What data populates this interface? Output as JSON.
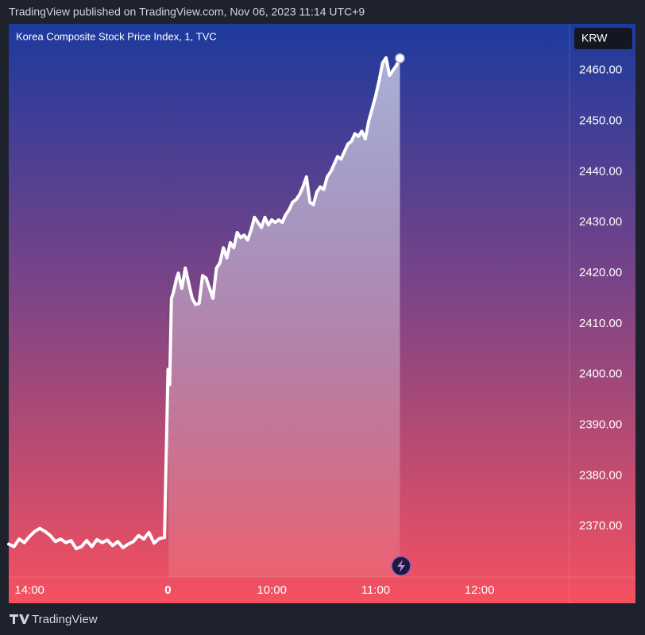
{
  "header": {
    "text": "TradingView published on TradingView.com, Nov 06, 2023 11:14 UTC+9"
  },
  "footer": {
    "brand": "TradingView"
  },
  "chart_data": {
    "type": "line",
    "title": "Korea Composite Stock Price Index, 1, TVC",
    "currency": "KRW",
    "x": [
      -92,
      -89,
      -86,
      -83,
      -80,
      -77,
      -74,
      -71,
      -68,
      -65,
      -62,
      -59,
      -56,
      -53,
      -50,
      -47,
      -44,
      -41,
      -38,
      -35,
      -32,
      -29,
      -26,
      -23,
      -20,
      -17,
      -14,
      -11,
      -8,
      -5,
      -2,
      0,
      1,
      2,
      3,
      5,
      6,
      8,
      10,
      12,
      14,
      16,
      18,
      20,
      22,
      24,
      26,
      28,
      30,
      32,
      34,
      36,
      38,
      40,
      42,
      44,
      46,
      48,
      50,
      52,
      54,
      56,
      58,
      60,
      62,
      64,
      66,
      68,
      70,
      72,
      74,
      76,
      78,
      80,
      82,
      84,
      86,
      88,
      90,
      92,
      94,
      96,
      98,
      100,
      102,
      104,
      106,
      108,
      110,
      112,
      114,
      116,
      118,
      120,
      122,
      124,
      126,
      128,
      130,
      132,
      134
    ],
    "series": [
      {
        "color": "#ffffff",
        "values": [
          2366.5,
          2366.0,
          2367.5,
          2366.8,
          2368.0,
          2369.0,
          2369.6,
          2369.0,
          2368.2,
          2367.0,
          2367.5,
          2366.8,
          2367.2,
          2365.6,
          2366.0,
          2367.2,
          2366.0,
          2367.4,
          2366.8,
          2367.3,
          2366.2,
          2367.0,
          2365.8,
          2366.5,
          2367.0,
          2368.2,
          2367.5,
          2368.8,
          2366.7,
          2367.6,
          2367.8,
          2401,
          2398,
          2415,
          2416,
          2419,
          2420,
          2417,
          2421,
          2418,
          2415,
          2413.8,
          2414,
          2419.5,
          2419,
          2417,
          2415,
          2421,
          2422,
          2425,
          2423,
          2426,
          2425,
          2428,
          2427,
          2427.5,
          2426.5,
          2428.5,
          2431,
          2430,
          2429,
          2431,
          2429.5,
          2430.5,
          2430,
          2430.5,
          2430,
          2431.5,
          2432.5,
          2434,
          2434.5,
          2435.5,
          2437,
          2439,
          2434,
          2433.5,
          2436,
          2437,
          2436.5,
          2439,
          2440,
          2441.5,
          2443,
          2442.5,
          2444,
          2445.5,
          2446,
          2447.5,
          2447,
          2448,
          2446.5,
          2450,
          2452.5,
          2455,
          2458,
          2461.5,
          2462.5,
          2459,
          2460,
          2461,
          2462.4
        ]
      }
    ],
    "xlim": [
      -92,
      232
    ],
    "ylim": [
      2360,
      2469.2
    ],
    "xticks": [
      {
        "value": -80,
        "label": "14:00"
      },
      0,
      {
        "value": 60,
        "label": "10:00"
      },
      {
        "value": 120,
        "label": "11:00"
      },
      {
        "value": 180,
        "label": "12:00"
      }
    ],
    "yticks": [
      {
        "value": 2370,
        "label": "2370.00"
      },
      {
        "value": 2380,
        "label": "2380.00"
      },
      {
        "value": 2390,
        "label": "2390.00"
      },
      {
        "value": 2400,
        "label": "2400.00"
      },
      {
        "value": 2410,
        "label": "2410.00"
      },
      {
        "value": 2420,
        "label": "2420.00"
      },
      {
        "value": 2430,
        "label": "2430.00"
      },
      {
        "value": 2440,
        "label": "2440.00"
      },
      {
        "value": 2450,
        "label": "2450.00"
      },
      {
        "value": 2460,
        "label": "2460.00"
      }
    ]
  }
}
